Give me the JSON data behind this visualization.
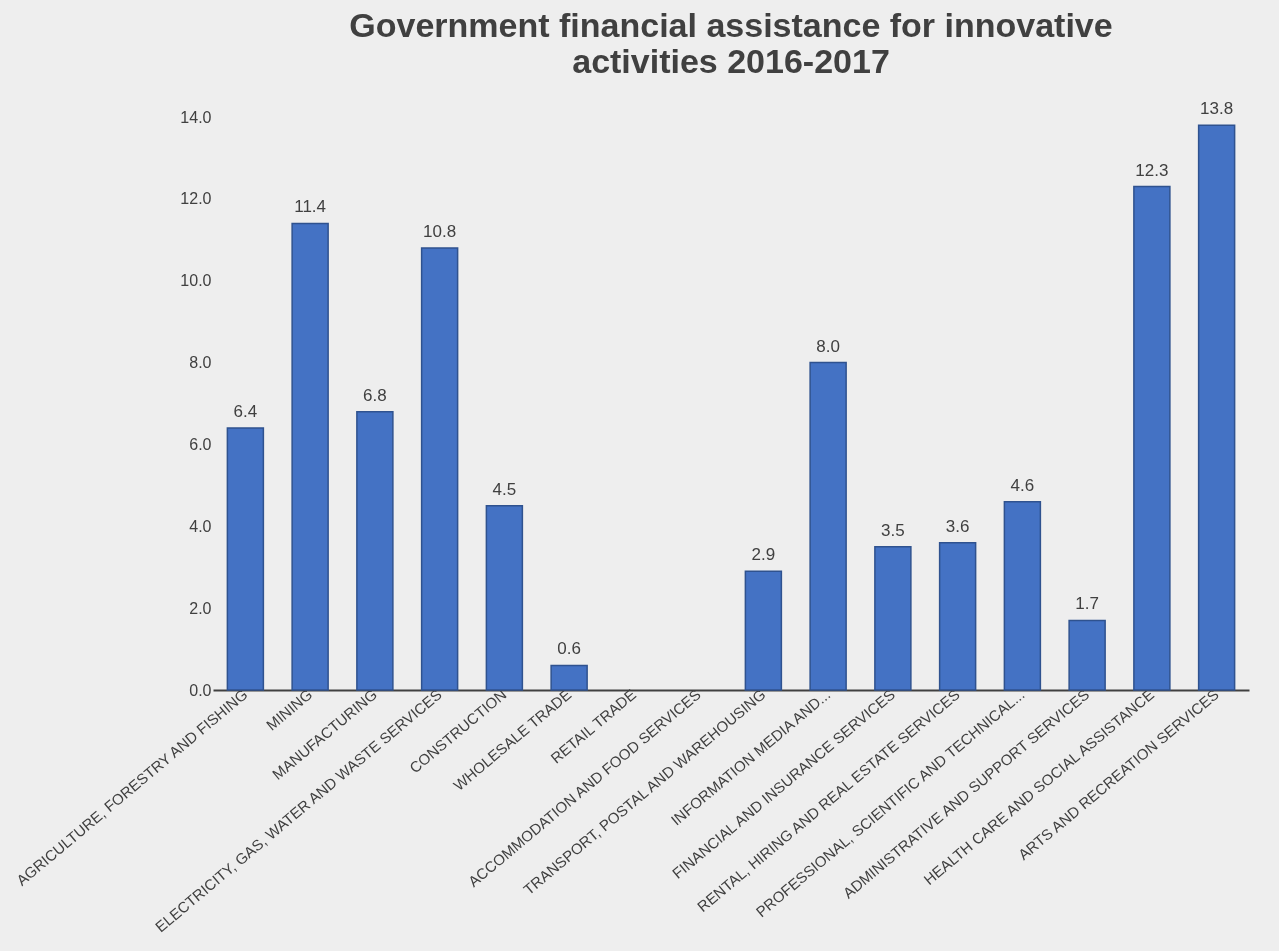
{
  "chart_data": {
    "type": "bar",
    "title": "Government financial assistance for innovative activities 2016-2017",
    "categories": [
      "AGRICULTURE, FORESTRY AND FISHING",
      "MINING",
      "MANUFACTURING",
      "ELECTRICITY, GAS, WATER AND WASTE SERVICES",
      "CONSTRUCTION",
      "WHOLESALE TRADE",
      "RETAIL TRADE",
      "ACCOMMODATION AND FOOD SERVICES",
      "TRANSPORT, POSTAL AND WAREHOUSING",
      "INFORMATION MEDIA AND...",
      "FINANCIAL AND INSURANCE SERVICES",
      "RENTAL, HIRING AND REAL ESTATE SERVICES",
      "PROFESSIONAL, SCIENTIFIC AND TECHNICAL...",
      "ADMINISTRATIVE AND SUPPORT SERVICES",
      "HEALTH CARE AND SOCIAL ASSISTANCE",
      "ARTS AND RECREATION SERVICES"
    ],
    "values": [
      6.4,
      11.4,
      6.8,
      10.8,
      4.5,
      0.6,
      null,
      null,
      2.9,
      8.0,
      3.5,
      3.6,
      4.6,
      1.7,
      12.3,
      13.8
    ],
    "color": "#4472c4",
    "ylim": [
      0,
      14
    ],
    "yticks": [
      {
        "value": 0,
        "label": "0.0"
      },
      {
        "value": 2,
        "label": "2.0"
      },
      {
        "value": 4,
        "label": "4.0"
      },
      {
        "value": 6,
        "label": "6.0"
      },
      {
        "value": 8,
        "label": "8.0"
      },
      {
        "value": 10,
        "label": "10.0"
      },
      {
        "value": 12,
        "label": "12.0"
      },
      {
        "value": 14,
        "label": "14.0"
      }
    ],
    "grid": false,
    "value_labels": [
      "6.4",
      "11.4",
      "6.8",
      "10.8",
      "4.5",
      "0.6",
      null,
      null,
      "2.9",
      "8.0",
      "3.5",
      "3.6",
      "4.6",
      "1.7",
      "12.3",
      "13.8"
    ]
  }
}
